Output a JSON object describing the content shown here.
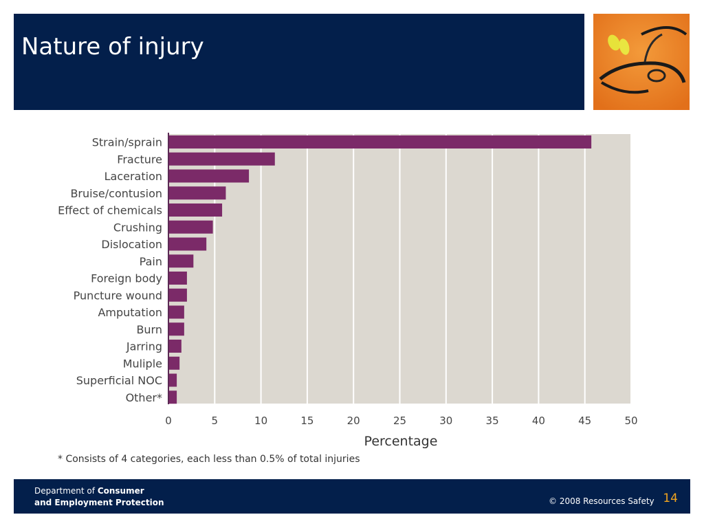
{
  "slide": {
    "title": "Nature of injury",
    "footnote": "* Consists of 4 categories, each less than 0.5% of total injuries",
    "footer": {
      "dept_prefix": "Department of ",
      "dept_bold_1": "Consumer",
      "dept_bold_2": "and Employment Protection",
      "copyright": "© 2008 Resources Safety",
      "page_number": "14"
    }
  },
  "colors": {
    "header": "#031f4b",
    "bar": "#7b2a68",
    "plot_bg": "#dcd8d0",
    "gridline": "#ffffff",
    "page_number": "#f2a51f"
  },
  "icons": {
    "photo": "safety-glasses-earplugs-photo"
  },
  "chart_data": {
    "type": "bar",
    "orientation": "horizontal",
    "categories": [
      "Strain/sprain",
      "Fracture",
      "Laceration",
      "Bruise/contusion",
      "Effect of chemicals",
      "Crushing",
      "Dislocation",
      "Pain",
      "Foreign body",
      "Puncture wound",
      "Amputation",
      "Burn",
      "Jarring",
      "Muliple",
      "Superficial NOC",
      "Other*"
    ],
    "values": [
      45.7,
      11.5,
      8.7,
      6.2,
      5.8,
      4.8,
      4.1,
      2.7,
      2.0,
      2.0,
      1.7,
      1.7,
      1.4,
      1.2,
      0.9,
      0.9
    ],
    "xlabel": "Percentage",
    "ylabel": "",
    "xlim": [
      0,
      50
    ],
    "xticks": [
      0,
      5,
      10,
      15,
      20,
      25,
      30,
      35,
      40,
      45,
      50
    ],
    "grid": true
  }
}
